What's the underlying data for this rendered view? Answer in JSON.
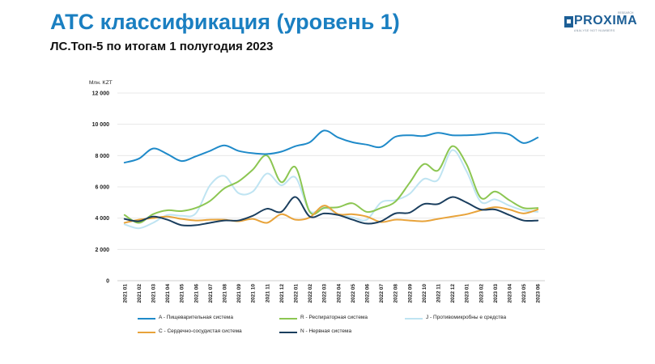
{
  "header": {
    "title": "АТС классификация (уровень 1)",
    "subtitle": "ЛС.Топ-5 по итогам 1 полугодия 2023"
  },
  "logo": {
    "name": "PROXIMA",
    "tagline": "ANALYSE·NOT·NUMBERS",
    "research": "RESEARCH"
  },
  "colors": {
    "title": "#1a7fc1"
  },
  "chart_data": {
    "type": "line",
    "title": "",
    "ylabel": "Млн. KZT",
    "xlabel": "",
    "ylim": [
      0,
      12000
    ],
    "yticks": [
      0,
      2000,
      4000,
      6000,
      8000,
      10000,
      12000
    ],
    "ytick_labels": [
      "0",
      "2 000",
      "4 000",
      "6 000",
      "8 000",
      "10 000",
      "12 000"
    ],
    "grid": true,
    "legend_position": "bottom",
    "categories": [
      "2021 01",
      "2021 02",
      "2021 03",
      "2021 04",
      "2021 05",
      "2021 06",
      "2021 07",
      "2021 08",
      "2021 09",
      "2021 10",
      "2021 11",
      "2021 12",
      "2022 01",
      "2022 02",
      "2022 03",
      "2022 04",
      "2022 05",
      "2022 06",
      "2022 07",
      "2022 08",
      "2022 09",
      "2022 10",
      "2022 11",
      "2022 12",
      "2023 01",
      "2023 02",
      "2023 03",
      "2023 04",
      "2023 05",
      "2023 06"
    ],
    "series": [
      {
        "name": "A - Пищеварительная   система",
        "color": "#1f8ac9",
        "values": [
          7550,
          7800,
          8450,
          8100,
          7650,
          7950,
          8300,
          8650,
          8300,
          8150,
          8100,
          8250,
          8600,
          8850,
          9600,
          9150,
          8850,
          8700,
          8550,
          9200,
          9300,
          9250,
          9450,
          9300,
          9300,
          9350,
          9450,
          9350,
          8800,
          9150
        ]
      },
      {
        "name": "R - Респираторная   система",
        "color": "#8cc652",
        "values": [
          4200,
          3700,
          4250,
          4500,
          4450,
          4650,
          5100,
          5900,
          6350,
          7100,
          8000,
          6300,
          7250,
          4400,
          4650,
          4700,
          4950,
          4400,
          4650,
          5050,
          6250,
          7450,
          7050,
          8600,
          7450,
          5300,
          5700,
          5150,
          4650,
          4650
        ]
      },
      {
        "name": "J - Противомикробны е   средства",
        "color": "#bfe4f2",
        "values": [
          3600,
          3350,
          3700,
          4200,
          4150,
          4300,
          6100,
          6700,
          5600,
          5700,
          6850,
          6100,
          6600,
          4450,
          4700,
          4250,
          4050,
          3900,
          5000,
          5150,
          5550,
          6500,
          6450,
          8350,
          7000,
          5050,
          5200,
          4800,
          4500,
          4400
        ]
      },
      {
        "name": "C - Сердечно-сосудистая   система",
        "color": "#e8a33a",
        "values": [
          3700,
          3900,
          4000,
          4100,
          3950,
          3850,
          3900,
          3900,
          3800,
          3950,
          3700,
          4250,
          3900,
          4050,
          4800,
          4250,
          4250,
          4100,
          3750,
          3900,
          3850,
          3800,
          3950,
          4100,
          4250,
          4500,
          4700,
          4550,
          4300,
          4550
        ]
      },
      {
        "name": "N - Нервная  система",
        "color": "#1a3e5e",
        "values": [
          3950,
          3800,
          4100,
          3900,
          3550,
          3550,
          3700,
          3850,
          3850,
          4150,
          4600,
          4400,
          5350,
          4100,
          4300,
          4200,
          3900,
          3650,
          3800,
          4300,
          4350,
          4900,
          4900,
          5350,
          5000,
          4550,
          4550,
          4200,
          3850,
          3850
        ]
      }
    ]
  }
}
